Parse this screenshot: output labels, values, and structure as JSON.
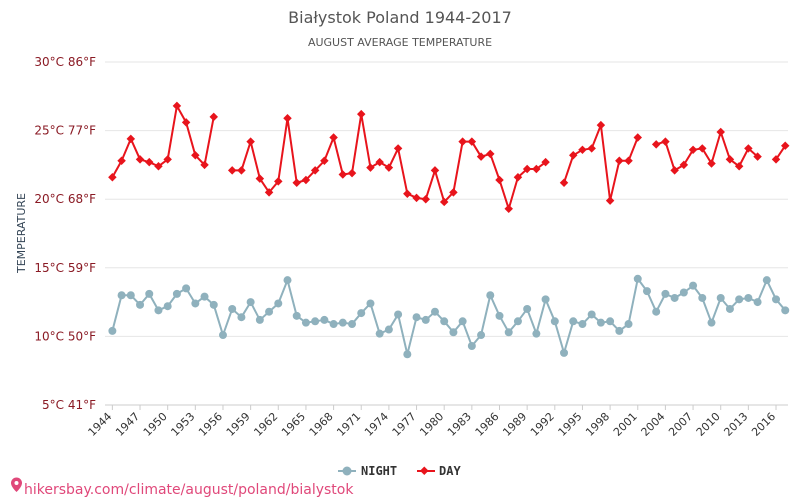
{
  "chart_data": {
    "type": "line",
    "title": "Białystok Poland 1944-2017",
    "subtitle": "AUGUST AVERAGE TEMPERATURE",
    "ylabel": "TEMPERATURE",
    "ylim": [
      5,
      30
    ],
    "yticks": [
      {
        "value": 5,
        "label": "5°C 41°F"
      },
      {
        "value": 10,
        "label": "10°C 50°F"
      },
      {
        "value": 15,
        "label": "15°C 59°F"
      },
      {
        "value": 20,
        "label": "20°C 68°F"
      },
      {
        "value": 25,
        "label": "25°C 77°F"
      },
      {
        "value": 30,
        "label": "30°C 86°F"
      }
    ],
    "xlim": [
      1944,
      2017
    ],
    "xticks": [
      "1944",
      "1947",
      "1950",
      "1953",
      "1956",
      "1959",
      "1962",
      "1965",
      "1968",
      "1971",
      "1974",
      "1977",
      "1980",
      "1983",
      "1986",
      "1989",
      "1992",
      "1995",
      "1998",
      "2001",
      "2004",
      "2007",
      "2010",
      "2013",
      "2016"
    ],
    "grid": true,
    "legend_position": "bottom",
    "x": [
      1944,
      1945,
      1946,
      1947,
      1948,
      1949,
      1950,
      1951,
      1952,
      1953,
      1954,
      1955,
      1956,
      1957,
      1958,
      1959,
      1960,
      1961,
      1962,
      1963,
      1964,
      1965,
      1966,
      1967,
      1968,
      1969,
      1970,
      1971,
      1972,
      1973,
      1974,
      1975,
      1976,
      1977,
      1978,
      1979,
      1980,
      1981,
      1982,
      1983,
      1984,
      1985,
      1986,
      1987,
      1988,
      1989,
      1990,
      1991,
      1992,
      1993,
      1994,
      1995,
      1996,
      1997,
      1998,
      1999,
      2000,
      2001,
      2002,
      2003,
      2004,
      2005,
      2006,
      2007,
      2008,
      2009,
      2010,
      2011,
      2012,
      2013,
      2014,
      2015,
      2016,
      2017
    ],
    "series": [
      {
        "name": "NIGHT",
        "color": "#8fb1bd",
        "values": [
          10.4,
          13.0,
          13.0,
          12.3,
          13.1,
          11.9,
          12.2,
          13.1,
          13.5,
          12.4,
          12.9,
          12.3,
          10.1,
          12.0,
          11.4,
          12.5,
          11.2,
          11.8,
          12.4,
          14.1,
          11.5,
          11.0,
          11.1,
          11.2,
          10.9,
          11.0,
          10.9,
          11.7,
          12.4,
          10.2,
          10.5,
          11.6,
          8.7,
          11.4,
          11.2,
          11.8,
          11.1,
          10.3,
          11.1,
          9.3,
          10.1,
          13.0,
          11.5,
          10.3,
          11.1,
          12.0,
          10.2,
          12.7,
          11.1,
          8.8,
          11.1,
          10.9,
          11.6,
          11.0,
          11.1,
          10.4,
          10.9,
          14.2,
          13.3,
          11.8,
          13.1,
          12.8,
          13.2,
          13.7,
          12.8,
          11.0,
          12.8,
          12.0,
          12.7,
          12.8,
          12.5,
          14.1,
          12.7,
          11.9
        ]
      },
      {
        "name": "DAY",
        "color": "#e8141c",
        "values": [
          21.6,
          22.8,
          24.4,
          22.9,
          22.7,
          22.4,
          22.9,
          26.8,
          25.6,
          23.2,
          22.5,
          26.0,
          null,
          22.1,
          22.1,
          24.2,
          21.5,
          20.5,
          21.3,
          25.9,
          21.2,
          21.4,
          22.1,
          22.8,
          24.5,
          21.8,
          21.9,
          26.2,
          22.3,
          22.7,
          22.3,
          23.7,
          20.4,
          20.1,
          20.0,
          22.1,
          19.8,
          20.5,
          24.2,
          24.2,
          23.1,
          23.3,
          21.4,
          19.3,
          21.6,
          22.2,
          22.2,
          22.7,
          null,
          21.2,
          23.2,
          23.6,
          23.7,
          25.4,
          19.9,
          22.8,
          22.8,
          24.5,
          null,
          24.0,
          24.2,
          22.1,
          22.5,
          23.6,
          23.7,
          22.6,
          24.9,
          22.9,
          22.4,
          23.7,
          23.1,
          null,
          22.9,
          23.9
        ]
      }
    ]
  },
  "source_text": "hikersbay.com/climate/august/poland/bialystok",
  "source_icon": "map-pin-icon"
}
